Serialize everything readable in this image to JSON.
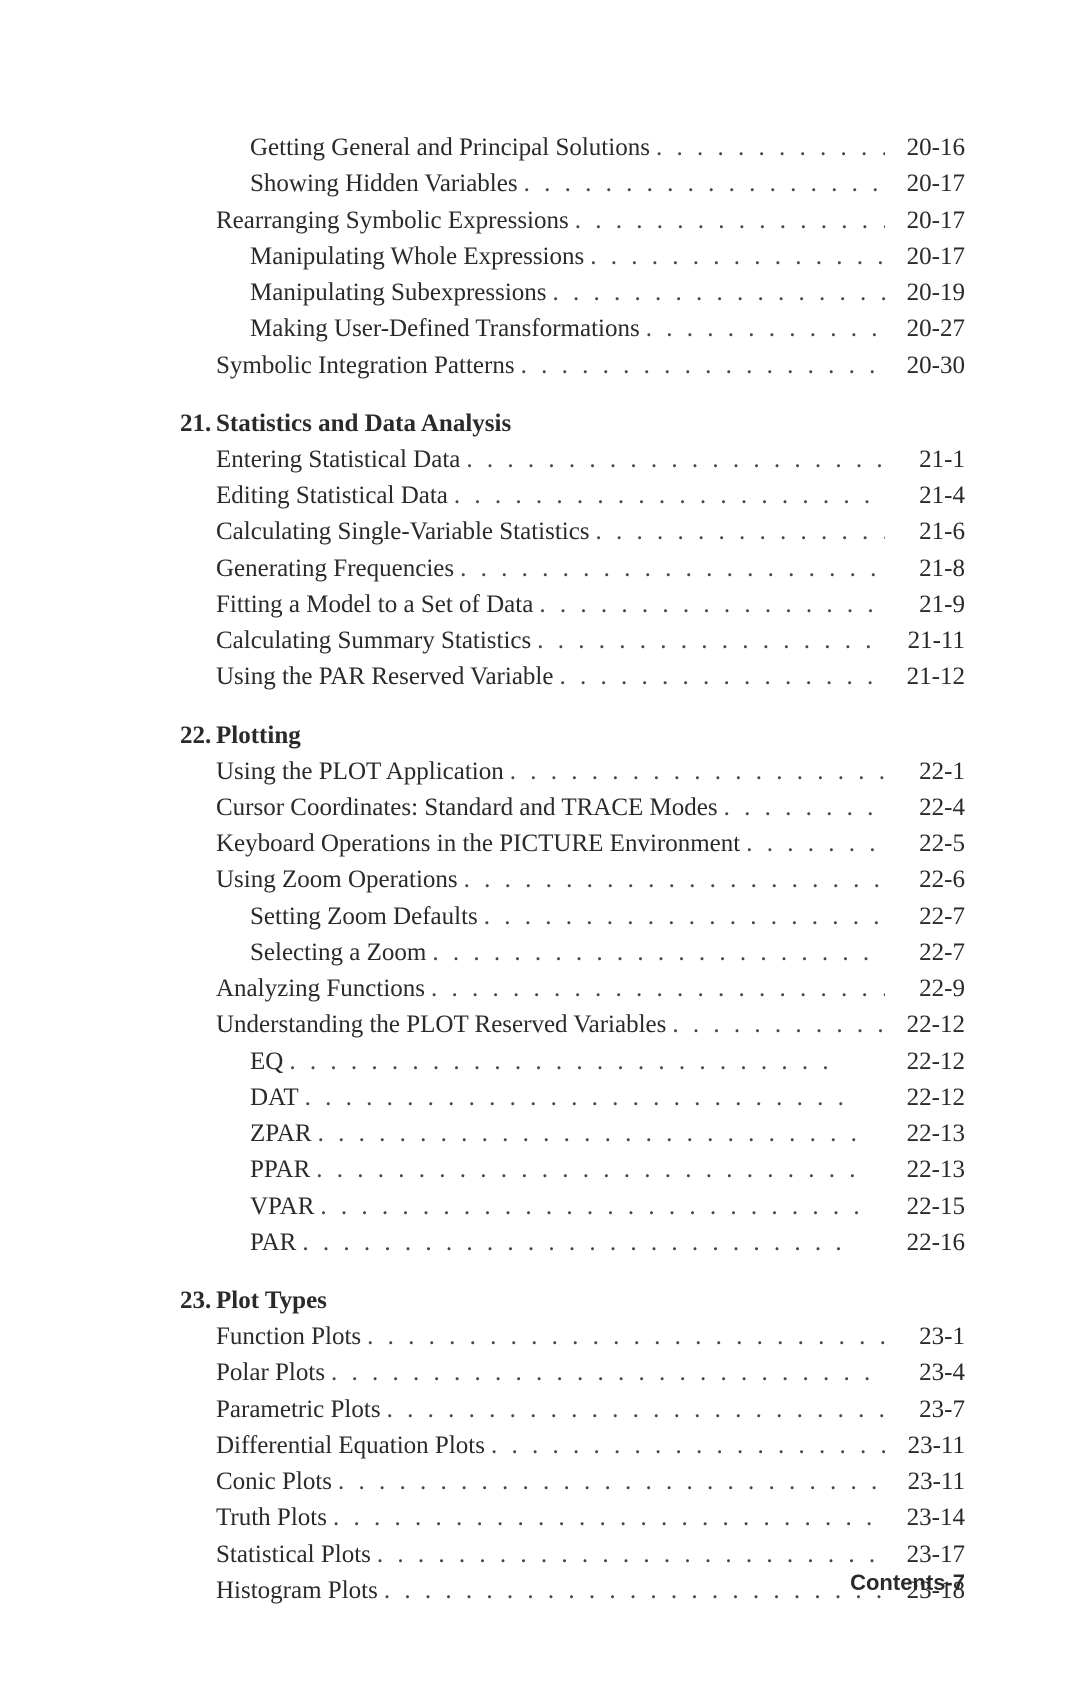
{
  "dots": ".  .  .  .  .  .  .  .  .  .  .  .  .  .  .  .  .  .  .  .  .  .  .  .  .  .  .",
  "intro": [
    {
      "indent": 1,
      "label": "Getting General and Principal Solutions",
      "page": "20-16"
    },
    {
      "indent": 1,
      "label": "Showing Hidden Variables",
      "page": "20-17"
    },
    {
      "indent": 0,
      "label": "Rearranging Symbolic Expressions",
      "page": "20-17"
    },
    {
      "indent": 1,
      "label": "Manipulating Whole Expressions",
      "page": "20-17"
    },
    {
      "indent": 1,
      "label": "Manipulating Subexpressions",
      "page": "20-19"
    },
    {
      "indent": 1,
      "label": "Making User-Defined Transformations",
      "page": "20-27"
    },
    {
      "indent": 0,
      "label": "Symbolic Integration Patterns",
      "page": "20-30"
    }
  ],
  "sections": [
    {
      "num": "21.",
      "title": "Statistics and Data Analysis",
      "items": [
        {
          "indent": 0,
          "label": "Entering Statistical Data",
          "page": "21-1"
        },
        {
          "indent": 0,
          "label": "Editing Statistical Data",
          "page": "21-4"
        },
        {
          "indent": 0,
          "label": "Calculating Single-Variable Statistics",
          "page": "21-6"
        },
        {
          "indent": 0,
          "label": "Generating Frequencies",
          "page": "21-8"
        },
        {
          "indent": 0,
          "label": "Fitting a Model to a Set of Data",
          "page": "21-9"
        },
        {
          "indent": 0,
          "label": "Calculating Summary Statistics",
          "page": "21-11"
        },
        {
          "indent": 0,
          "label": "Using the PAR Reserved Variable",
          "page": "21-12"
        }
      ]
    },
    {
      "num": "22.",
      "title": "Plotting",
      "items": [
        {
          "indent": 0,
          "label": "Using the PLOT Application",
          "page": "22-1"
        },
        {
          "indent": 0,
          "label": "Cursor Coordinates: Standard and TRACE Modes",
          "page": "22-4"
        },
        {
          "indent": 0,
          "label": "Keyboard Operations in the PICTURE Environment",
          "page": "22-5"
        },
        {
          "indent": 0,
          "label": "Using Zoom Operations",
          "page": "22-6"
        },
        {
          "indent": 1,
          "label": "Setting Zoom Defaults",
          "page": "22-7"
        },
        {
          "indent": 1,
          "label": "Selecting a Zoom",
          "page": "22-7"
        },
        {
          "indent": 0,
          "label": "Analyzing Functions",
          "page": "22-9"
        },
        {
          "indent": 0,
          "label": "Understanding the PLOT Reserved Variables",
          "page": "22-12"
        },
        {
          "indent": 1,
          "label": "EQ",
          "page": "22-12"
        },
        {
          "indent": 1,
          "label": "DAT",
          "page": "22-12"
        },
        {
          "indent": 1,
          "label": "ZPAR",
          "page": "22-13"
        },
        {
          "indent": 1,
          "label": "PPAR",
          "page": "22-13"
        },
        {
          "indent": 1,
          "label": "VPAR",
          "page": "22-15"
        },
        {
          "indent": 1,
          "label": "PAR",
          "page": "22-16"
        }
      ]
    },
    {
      "num": "23.",
      "title": "Plot Types",
      "items": [
        {
          "indent": 0,
          "label": "Function Plots",
          "page": "23-1"
        },
        {
          "indent": 0,
          "label": "Polar Plots",
          "page": "23-4"
        },
        {
          "indent": 0,
          "label": "Parametric Plots",
          "page": "23-7"
        },
        {
          "indent": 0,
          "label": "Differential Equation Plots",
          "page": "23-11"
        },
        {
          "indent": 0,
          "label": "Conic Plots",
          "page": "23-11"
        },
        {
          "indent": 0,
          "label": "Truth Plots",
          "page": "23-14"
        },
        {
          "indent": 0,
          "label": "Statistical Plots",
          "page": "23-17"
        },
        {
          "indent": 0,
          "label": "Histogram Plots",
          "page": "23-18"
        }
      ]
    }
  ],
  "footer": "Contents-7"
}
